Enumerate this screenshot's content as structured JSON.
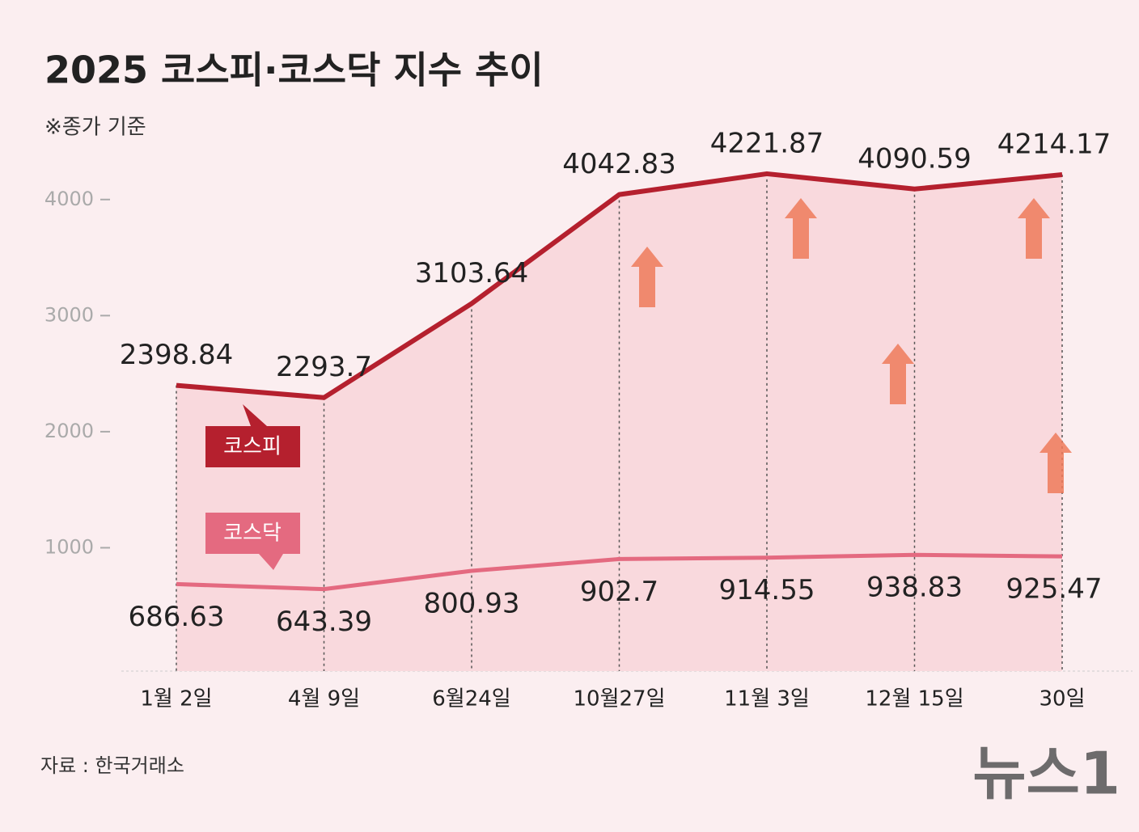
{
  "chart_data": {
    "type": "line",
    "title": "2025 코스피·코스닥 지수 추이",
    "subtitle": "※종가 기준",
    "source": "자료 : 한국거래소",
    "logo": "뉴스1",
    "categories": [
      "1월 2일",
      "4월 9일",
      "6월24일",
      "10월27일",
      "11월 3일",
      "12월 15일",
      "30일"
    ],
    "series": [
      {
        "name": "코스피",
        "color": "#b5202e",
        "values": [
          2398.84,
          2293.7,
          3103.64,
          4042.83,
          4221.87,
          4090.59,
          4214.17
        ]
      },
      {
        "name": "코스닥",
        "color": "#e46a80",
        "values": [
          686.63,
          643.39,
          800.93,
          902.7,
          914.55,
          938.83,
          925.47
        ]
      }
    ],
    "ylim": [
      0,
      4500
    ],
    "yticks": [
      1000,
      2000,
      3000,
      4000
    ],
    "grid": false
  }
}
